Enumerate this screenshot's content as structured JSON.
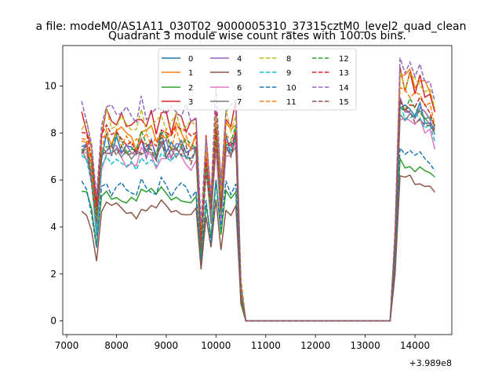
{
  "figure": {
    "suptitle": "a file: modeM0/AS1A11_030T02_9000005310_37315cztM0_level2_quad_clean",
    "title": "Quadrant 3 module wise count rates with 100.0s bins.",
    "offset_label": "+3.989e8"
  },
  "chart_data": {
    "type": "line",
    "title": "Quadrant 3 module wise count rates with 100.0s bins.",
    "xlabel": "",
    "ylabel": "",
    "x_offset": 398900000,
    "xlim": [
      6920,
      14740
    ],
    "ylim": [
      -0.58,
      11.72
    ],
    "xticks": [
      7000,
      8000,
      9000,
      10000,
      11000,
      12000,
      13000,
      14000
    ],
    "yticks": [
      0,
      2,
      4,
      6,
      8,
      10
    ],
    "grid": false,
    "legend": {
      "placement": "upper center",
      "columns": 4
    },
    "series": [
      {
        "name": "0",
        "color": "#1f77b4",
        "dash": "solid",
        "level": 7.5,
        "peak": 9.3
      },
      {
        "name": "1",
        "color": "#ff7f0e",
        "dash": "solid",
        "level": 8.0,
        "peak": 10.7
      },
      {
        "name": "2",
        "color": "#2ca02c",
        "dash": "solid",
        "level": 5.4,
        "peak": 6.9
      },
      {
        "name": "3",
        "color": "#d62728",
        "dash": "solid",
        "level": 8.6,
        "peak": 10.5
      },
      {
        "name": "4",
        "color": "#9467bd",
        "dash": "solid",
        "level": 7.4,
        "peak": 9.3
      },
      {
        "name": "5",
        "color": "#8c564b",
        "dash": "solid",
        "level": 4.8,
        "peak": 6.2
      },
      {
        "name": "6",
        "color": "#e377c2",
        "dash": "solid",
        "level": 7.0,
        "peak": 8.8
      },
      {
        "name": "7",
        "color": "#7f7f7f",
        "dash": "solid",
        "level": 7.2,
        "peak": 9.0
      },
      {
        "name": "8",
        "color": "#bcbd22",
        "dash": "dashed",
        "level": 8.5,
        "peak": 10.6
      },
      {
        "name": "9",
        "color": "#17becf",
        "dash": "dashed",
        "level": 7.1,
        "peak": 9.0
      },
      {
        "name": "10",
        "color": "#1f77b4",
        "dash": "dashed",
        "level": 5.7,
        "peak": 7.2
      },
      {
        "name": "11",
        "color": "#ff7f0e",
        "dash": "dashed",
        "level": 7.8,
        "peak": 10.0
      },
      {
        "name": "12",
        "color": "#2ca02c",
        "dash": "dashed",
        "level": 7.6,
        "peak": 9.4
      },
      {
        "name": "13",
        "color": "#d62728",
        "dash": "dashed",
        "level": 7.9,
        "peak": 9.6
      },
      {
        "name": "14",
        "color": "#9467bd",
        "dash": "dashed",
        "level": 9.0,
        "peak": 11.1
      },
      {
        "name": "15",
        "color": "#8c564b",
        "dash": "dashed",
        "level": 7.3,
        "peak": 9.1
      }
    ],
    "x_samples": [
      7300,
      7400,
      7500,
      7600,
      7700,
      7800,
      7900,
      8000,
      8100,
      8200,
      8300,
      8400,
      8500,
      8600,
      8700,
      8800,
      8900,
      9000,
      9100,
      9200,
      9300,
      9400,
      9500,
      9600,
      9700,
      9800,
      9900,
      10000,
      10100,
      10200,
      10300,
      10400,
      10500,
      10600,
      13300,
      13400,
      13500,
      13600,
      13700,
      13800,
      13900,
      14000,
      14100,
      14200,
      14300,
      14400
    ],
    "profile": [
      1.0,
      0.98,
      0.84,
      0.55,
      0.96,
      1.02,
      0.98,
      1.01,
      0.99,
      0.97,
      1.0,
      0.95,
      1.02,
      0.98,
      1.0,
      0.96,
      1.03,
      1.0,
      0.97,
      1.01,
      0.99,
      0.98,
      0.96,
      0.99,
      0.42,
      0.88,
      0.62,
      1.07,
      0.65,
      1.02,
      0.98,
      1.05,
      0.18,
      0,
      0,
      0
    ],
    "peak_profile": [
      0,
      0.35,
      1.0,
      0.96,
      0.98,
      0.95,
      0.97,
      0.93,
      0.9,
      0.86,
      0.82,
      0.78,
      0.6,
      0.4
    ],
    "flat_segment": {
      "from": 10600,
      "to": 13300,
      "value": 0
    }
  }
}
